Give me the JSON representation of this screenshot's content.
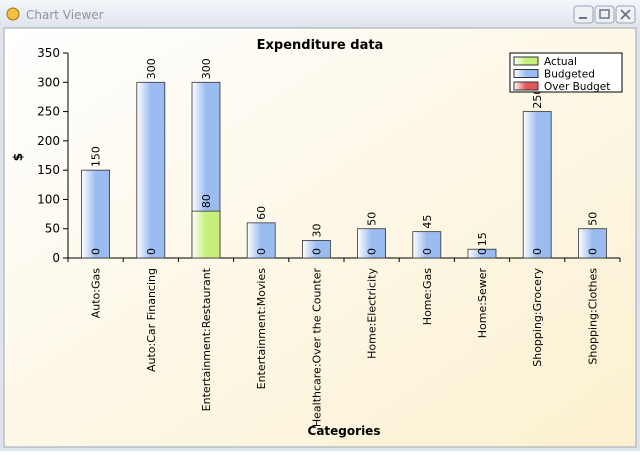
{
  "window_title": "Chart Viewer",
  "chart_data": {
    "type": "bar",
    "title": "Expenditure data",
    "x_label": "Categories",
    "y_label": "$",
    "categories": [
      "Auto:Gas",
      "Auto:Car Financing",
      "Entertainment:Restaurant",
      "Entertainment:Movies",
      "Healthcare:Over the Counter",
      "Home:Electricity",
      "Home:Gas",
      "Home:Sewer",
      "Shopping:Grocery",
      "Shopping:Clothes"
    ],
    "series": [
      {
        "name": "Budgeted",
        "color": "#9bbcf0",
        "labels": true,
        "values": [
          150,
          300,
          300,
          60,
          30,
          50,
          45,
          15,
          250,
          50
        ]
      },
      {
        "name": "Actual",
        "color": "#c6f07a",
        "labels": true,
        "values": [
          0,
          0,
          80,
          0,
          0,
          0,
          0,
          0,
          0,
          0
        ]
      },
      {
        "name": "Over Budget",
        "color": "#e05a5a",
        "labels": false,
        "values": [
          0,
          0,
          0,
          0,
          0,
          0,
          0,
          0,
          0,
          0
        ]
      }
    ],
    "legend_order": [
      1,
      0,
      2
    ],
    "legend": "top-right",
    "ylim": [
      0,
      350
    ],
    "yticks": [
      0,
      50,
      100,
      150,
      200,
      250,
      300,
      350
    ]
  }
}
